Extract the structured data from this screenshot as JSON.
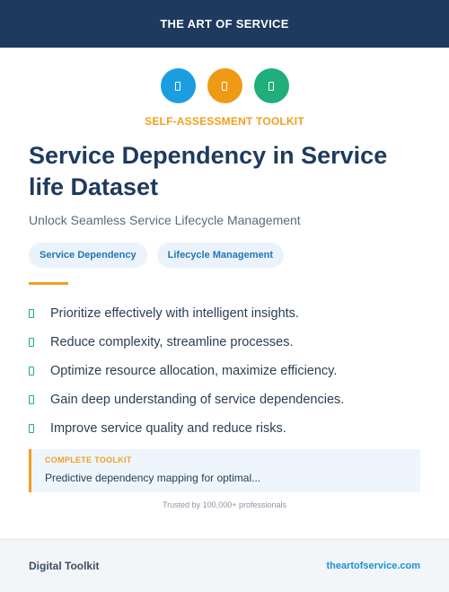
{
  "header": {
    "brand": "THE ART OF SERVICE"
  },
  "icons": [
    {
      "name": "toolkit-icon-1",
      "color": "#1a9ee0"
    },
    {
      "name": "toolkit-icon-2",
      "color": "#ef9a14"
    },
    {
      "name": "toolkit-icon-3",
      "color": "#1fae7c"
    }
  ],
  "eyebrow": "SELF-ASSESSMENT TOOLKIT",
  "title": "Service Dependency in Service life Dataset",
  "subtitle": "Unlock Seamless Service Lifecycle Management",
  "tags": [
    "Service Dependency",
    "Lifecycle Management"
  ],
  "benefits": [
    "Prioritize effectively with intelligent insights.",
    "Reduce complexity, streamline processes.",
    "Optimize resource allocation, maximize efficiency.",
    "Gain deep understanding of service dependencies.",
    "Improve service quality and reduce risks."
  ],
  "callout": {
    "label": "COMPLETE TOOLKIT",
    "text": "Predictive dependency mapping for optimal..."
  },
  "trust": "Trusted by 100,000+ professionals",
  "footer": {
    "left": "Digital Toolkit",
    "right": "theartofservice.com"
  },
  "colors": {
    "navy": "#1e3a5f",
    "accent": "#f0a020",
    "check": "#1fae7c",
    "link": "#1a8fd6"
  }
}
